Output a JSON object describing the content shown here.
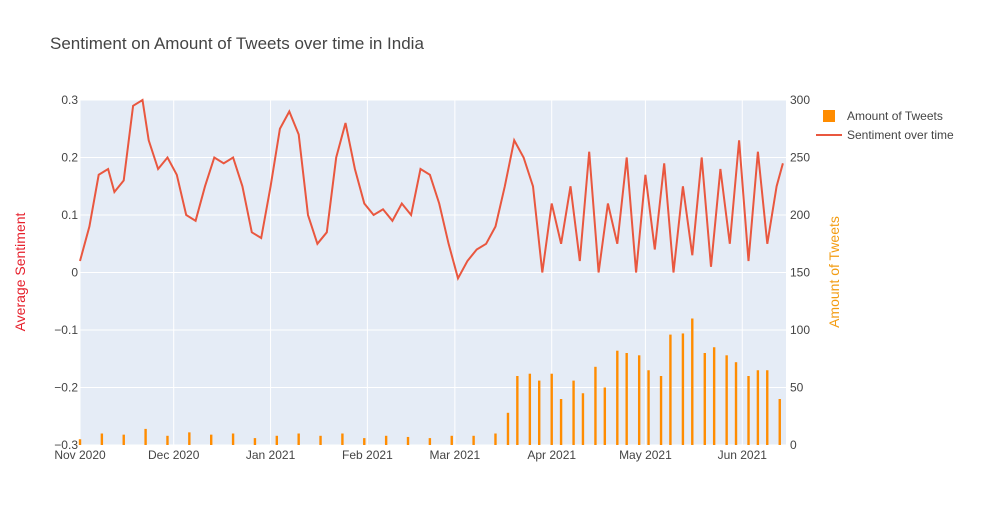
{
  "chart_data": {
    "type": "bar+line",
    "title": "Sentiment on Amount of Tweets over time in India",
    "y_left_label": "Average Sentiment",
    "y_right_label": "Amount of Tweets",
    "y_left_range": [
      -0.3,
      0.3
    ],
    "y_left_ticks": [
      "0.3",
      "0.2",
      "0.1",
      "0",
      "−0.1",
      "−0.2",
      "−0.3"
    ],
    "y_right_range": [
      0,
      300
    ],
    "y_right_ticks": [
      "300",
      "250",
      "200",
      "150",
      "100",
      "50",
      "0"
    ],
    "x_range": [
      "2020-11-01",
      "2021-06-15"
    ],
    "x_ticks": [
      "Nov 2020",
      "Dec 2020",
      "Jan 2021",
      "Feb 2021",
      "Mar 2021",
      "Apr 2021",
      "May 2021",
      "Jun 2021"
    ],
    "legend_position": "top-right",
    "grid": true,
    "series": [
      {
        "name": "Amount of Tweets",
        "type": "bar",
        "axis": "right",
        "color": "#ff8c00",
        "points": [
          [
            "2020-11-01",
            5
          ],
          [
            "2020-11-08",
            10
          ],
          [
            "2020-11-15",
            9
          ],
          [
            "2020-11-22",
            14
          ],
          [
            "2020-11-29",
            8
          ],
          [
            "2020-12-06",
            11
          ],
          [
            "2020-12-13",
            9
          ],
          [
            "2020-12-20",
            10
          ],
          [
            "2020-12-27",
            6
          ],
          [
            "2021-01-03",
            8
          ],
          [
            "2021-01-10",
            10
          ],
          [
            "2021-01-17",
            8
          ],
          [
            "2021-01-24",
            10
          ],
          [
            "2021-01-31",
            6
          ],
          [
            "2021-02-07",
            8
          ],
          [
            "2021-02-14",
            7
          ],
          [
            "2021-02-21",
            6
          ],
          [
            "2021-02-28",
            8
          ],
          [
            "2021-03-07",
            8
          ],
          [
            "2021-03-14",
            10
          ],
          [
            "2021-03-18",
            28
          ],
          [
            "2021-03-21",
            60
          ],
          [
            "2021-03-25",
            62
          ],
          [
            "2021-03-28",
            56
          ],
          [
            "2021-04-01",
            62
          ],
          [
            "2021-04-04",
            40
          ],
          [
            "2021-04-08",
            56
          ],
          [
            "2021-04-11",
            45
          ],
          [
            "2021-04-15",
            68
          ],
          [
            "2021-04-18",
            50
          ],
          [
            "2021-04-22",
            82
          ],
          [
            "2021-04-25",
            80
          ],
          [
            "2021-04-29",
            78
          ],
          [
            "2021-05-02",
            65
          ],
          [
            "2021-05-06",
            60
          ],
          [
            "2021-05-09",
            96
          ],
          [
            "2021-05-13",
            97
          ],
          [
            "2021-05-16",
            110
          ],
          [
            "2021-05-20",
            80
          ],
          [
            "2021-05-23",
            85
          ],
          [
            "2021-05-27",
            78
          ],
          [
            "2021-05-30",
            72
          ],
          [
            "2021-06-03",
            60
          ],
          [
            "2021-06-06",
            65
          ],
          [
            "2021-06-09",
            65
          ],
          [
            "2021-06-13",
            40
          ]
        ]
      },
      {
        "name": "Sentiment over time",
        "type": "line",
        "axis": "left",
        "color": "#e9573f",
        "points": [
          [
            "2020-11-01",
            0.02
          ],
          [
            "2020-11-04",
            0.08
          ],
          [
            "2020-11-07",
            0.17
          ],
          [
            "2020-11-10",
            0.18
          ],
          [
            "2020-11-12",
            0.14
          ],
          [
            "2020-11-15",
            0.16
          ],
          [
            "2020-11-18",
            0.29
          ],
          [
            "2020-11-21",
            0.3
          ],
          [
            "2020-11-23",
            0.23
          ],
          [
            "2020-11-26",
            0.18
          ],
          [
            "2020-11-29",
            0.2
          ],
          [
            "2020-12-02",
            0.17
          ],
          [
            "2020-12-05",
            0.1
          ],
          [
            "2020-12-08",
            0.09
          ],
          [
            "2020-12-11",
            0.15
          ],
          [
            "2020-12-14",
            0.2
          ],
          [
            "2020-12-17",
            0.19
          ],
          [
            "2020-12-20",
            0.2
          ],
          [
            "2020-12-23",
            0.15
          ],
          [
            "2020-12-26",
            0.07
          ],
          [
            "2020-12-29",
            0.06
          ],
          [
            "2021-01-01",
            0.15
          ],
          [
            "2021-01-04",
            0.25
          ],
          [
            "2021-01-07",
            0.28
          ],
          [
            "2021-01-10",
            0.24
          ],
          [
            "2021-01-13",
            0.1
          ],
          [
            "2021-01-16",
            0.05
          ],
          [
            "2021-01-19",
            0.07
          ],
          [
            "2021-01-22",
            0.2
          ],
          [
            "2021-01-25",
            0.26
          ],
          [
            "2021-01-28",
            0.18
          ],
          [
            "2021-01-31",
            0.12
          ],
          [
            "2021-02-03",
            0.1
          ],
          [
            "2021-02-06",
            0.11
          ],
          [
            "2021-02-09",
            0.09
          ],
          [
            "2021-02-12",
            0.12
          ],
          [
            "2021-02-15",
            0.1
          ],
          [
            "2021-02-18",
            0.18
          ],
          [
            "2021-02-21",
            0.17
          ],
          [
            "2021-02-24",
            0.12
          ],
          [
            "2021-02-27",
            0.05
          ],
          [
            "2021-03-02",
            -0.01
          ],
          [
            "2021-03-05",
            0.02
          ],
          [
            "2021-03-08",
            0.04
          ],
          [
            "2021-03-11",
            0.05
          ],
          [
            "2021-03-14",
            0.08
          ],
          [
            "2021-03-17",
            0.15
          ],
          [
            "2021-03-20",
            0.23
          ],
          [
            "2021-03-23",
            0.2
          ],
          [
            "2021-03-26",
            0.15
          ],
          [
            "2021-03-29",
            0.0
          ],
          [
            "2021-04-01",
            0.12
          ],
          [
            "2021-04-04",
            0.05
          ],
          [
            "2021-04-07",
            0.15
          ],
          [
            "2021-04-10",
            0.02
          ],
          [
            "2021-04-13",
            0.21
          ],
          [
            "2021-04-16",
            0.0
          ],
          [
            "2021-04-19",
            0.12
          ],
          [
            "2021-04-22",
            0.05
          ],
          [
            "2021-04-25",
            0.2
          ],
          [
            "2021-04-28",
            0.0
          ],
          [
            "2021-05-01",
            0.17
          ],
          [
            "2021-05-04",
            0.04
          ],
          [
            "2021-05-07",
            0.19
          ],
          [
            "2021-05-10",
            0.0
          ],
          [
            "2021-05-13",
            0.15
          ],
          [
            "2021-05-16",
            0.03
          ],
          [
            "2021-05-19",
            0.2
          ],
          [
            "2021-05-22",
            0.01
          ],
          [
            "2021-05-25",
            0.18
          ],
          [
            "2021-05-28",
            0.05
          ],
          [
            "2021-05-31",
            0.23
          ],
          [
            "2021-06-03",
            0.02
          ],
          [
            "2021-06-06",
            0.21
          ],
          [
            "2021-06-09",
            0.05
          ],
          [
            "2021-06-12",
            0.15
          ],
          [
            "2021-06-14",
            0.19
          ]
        ]
      }
    ]
  }
}
